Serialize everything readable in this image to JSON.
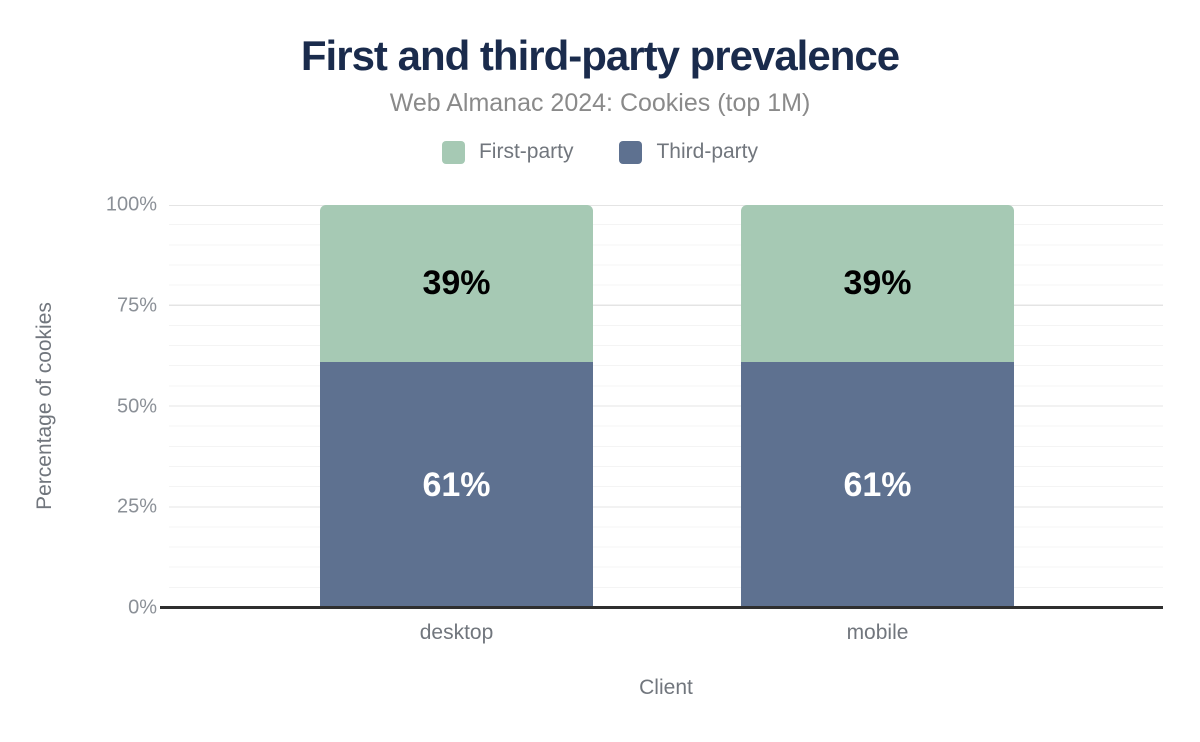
{
  "header": {
    "title": "First and third-party prevalence",
    "subtitle": "Web Almanac 2024: Cookies (top 1M)"
  },
  "legend": {
    "items": [
      {
        "label": "First-party",
        "color": "#a6c9b4"
      },
      {
        "label": "Third-party",
        "color": "#5e7190"
      }
    ]
  },
  "colors": {
    "first_party": "#a6c9b4",
    "third_party": "#5e7190",
    "title": "#1a2b4c",
    "axis_line": "#2f2f2f",
    "muted_text": "#71767d"
  },
  "chart_data": {
    "type": "bar",
    "stacked": true,
    "title": "First and third-party prevalence",
    "subtitle": "Web Almanac 2024: Cookies (top 1M)",
    "xlabel": "Client",
    "ylabel": "Percentage of cookies",
    "categories": [
      "desktop",
      "mobile"
    ],
    "series": [
      {
        "name": "First-party",
        "color": "#a6c9b4",
        "values": [
          39,
          39
        ],
        "labels": [
          "39%",
          "39%"
        ]
      },
      {
        "name": "Third-party",
        "color": "#5e7190",
        "values": [
          61,
          61
        ],
        "labels": [
          "61%",
          "61%"
        ]
      }
    ],
    "ylim": [
      0,
      100
    ],
    "yticks": [
      "0%",
      "25%",
      "50%",
      "75%",
      "100%"
    ],
    "grid": "minor gridlines every 5%, major every 25%",
    "legend_position": "top"
  }
}
